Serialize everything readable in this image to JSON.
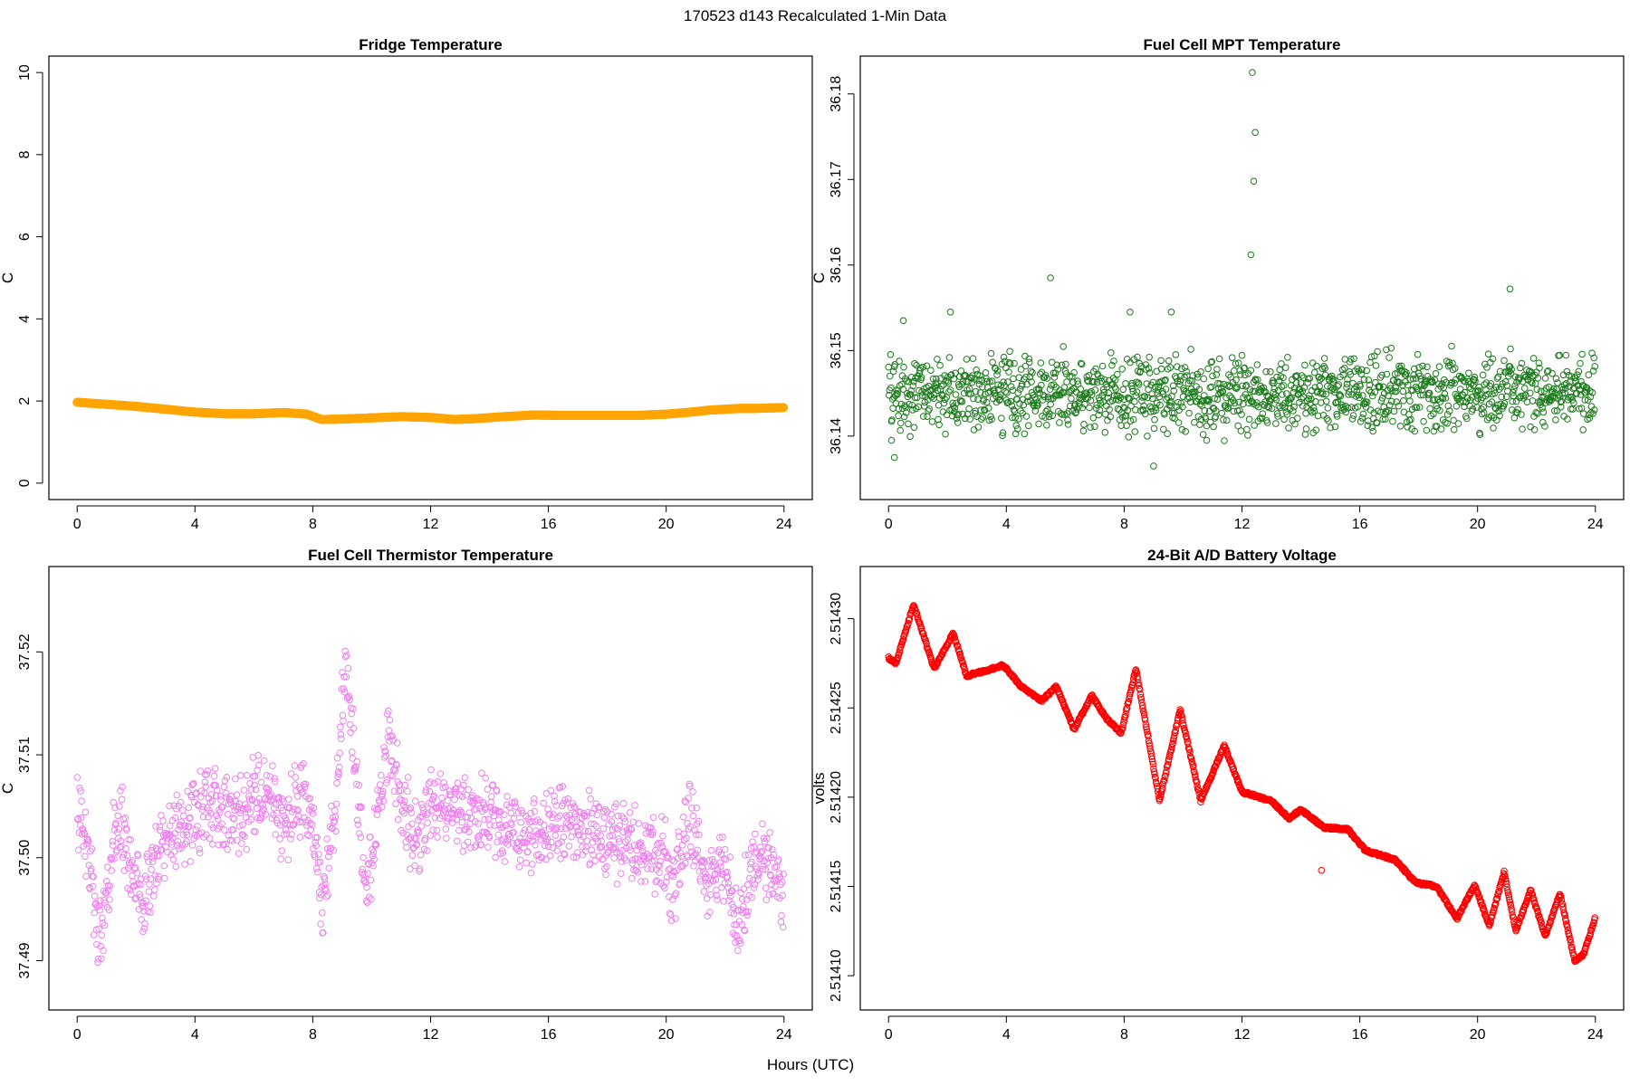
{
  "figure": {
    "title": "170523   d143   Recalculated 1-Min Data",
    "xlabel": "Hours (UTC)"
  },
  "chart_data": [
    {
      "type": "scatter",
      "title": "Fridge Temperature",
      "xlabel": "",
      "ylabel": "C",
      "xlim": [
        0,
        24
      ],
      "ylim": [
        0,
        10
      ],
      "xticks": [
        "0",
        "4",
        "8",
        "12",
        "16",
        "20",
        "24"
      ],
      "yticks": [
        "0",
        "2",
        "4",
        "6",
        "8",
        "10"
      ],
      "color": "#FFA500",
      "filled": true,
      "series": [
        {
          "name": "Fridge Temperature",
          "x": [
            0,
            1,
            2,
            3,
            4,
            5,
            6,
            7,
            7.8,
            8.3,
            9,
            10,
            11,
            12,
            12.8,
            13.5,
            14.5,
            15.5,
            16.5,
            18,
            19,
            20,
            20.7,
            21.5,
            22.5,
            23,
            24
          ],
          "y": [
            1.97,
            1.92,
            1.87,
            1.8,
            1.73,
            1.69,
            1.69,
            1.72,
            1.68,
            1.55,
            1.56,
            1.59,
            1.62,
            1.6,
            1.55,
            1.57,
            1.62,
            1.66,
            1.65,
            1.65,
            1.65,
            1.68,
            1.72,
            1.78,
            1.82,
            1.82,
            1.84
          ]
        }
      ]
    },
    {
      "type": "scatter",
      "title": "Fuel Cell MPT Temperature",
      "xlabel": "",
      "ylabel": "C",
      "xlim": [
        0,
        24
      ],
      "ylim": [
        36.1345,
        36.1825
      ],
      "xticks": [
        "0",
        "4",
        "8",
        "12",
        "16",
        "20",
        "24"
      ],
      "yticks": [
        "36.14",
        "36.15",
        "36.16",
        "36.17",
        "36.18"
      ],
      "color": "#1A7A1A",
      "filled": false,
      "series": [
        {
          "name": "Fuel Cell MPT Temperature",
          "base": 36.145,
          "noise": 0.0035,
          "x": [
            0.2,
            0.1,
            0.5,
            5.5,
            9,
            9.6,
            10.8,
            12.3,
            12.35,
            12.4,
            12.45,
            21.1,
            2.1,
            8.2
          ],
          "y": [
            36.1375,
            36.1395,
            36.1535,
            36.1585,
            36.1365,
            36.1545,
            36.1395,
            36.1612,
            36.1825,
            36.1698,
            36.1755,
            36.1572,
            36.1545,
            36.1545
          ]
        }
      ]
    },
    {
      "type": "scatter",
      "title": "Fuel Cell Thermistor Temperature",
      "xlabel": "",
      "ylabel": "C",
      "xlim": [
        0,
        24
      ],
      "ylim": [
        37.4868,
        37.5267
      ],
      "xticks": [
        "0",
        "4",
        "8",
        "12",
        "16",
        "20",
        "24"
      ],
      "yticks": [
        "37.49",
        "37.50",
        "37.51",
        "37.52"
      ],
      "color": "#EE82EE",
      "filled": false,
      "series": [
        {
          "name": "Fuel Cell Thermistor Temperature",
          "x": [
            0,
            0.5,
            0.8,
            1.2,
            1.5,
            1.8,
            2.2,
            2.8,
            3.5,
            4.5,
            5.5,
            6,
            6.5,
            7,
            7.5,
            8,
            8.3,
            8.8,
            9.1,
            9.5,
            9.8,
            10.3,
            10.6,
            11,
            11.5,
            12,
            13,
            14,
            15,
            16,
            17,
            18,
            19,
            20,
            20.3,
            20.8,
            21.3,
            22,
            22.5,
            23,
            23.5,
            23.9
          ],
          "y": [
            37.505,
            37.498,
            37.492,
            37.501,
            37.504,
            37.499,
            37.495,
            37.501,
            37.503,
            37.505,
            37.504,
            37.506,
            37.507,
            37.503,
            37.506,
            37.504,
            37.495,
            37.506,
            37.52,
            37.507,
            37.497,
            37.506,
            37.512,
            37.505,
            37.502,
            37.505,
            37.505,
            37.504,
            37.502,
            37.503,
            37.503,
            37.502,
            37.501,
            37.5,
            37.497,
            37.505,
            37.497,
            37.499,
            37.494,
            37.499,
            37.5,
            37.496
          ]
        }
      ]
    },
    {
      "type": "scatter",
      "title": "24-Bit A/D Battery Voltage",
      "xlabel": "",
      "ylabel": "volts",
      "xlim": [
        0,
        24
      ],
      "ylim": [
        2.51409,
        2.51432
      ],
      "xticks": [
        "0",
        "4",
        "8",
        "12",
        "16",
        "20",
        "24"
      ],
      "yticks": [
        "2.51410",
        "2.51415",
        "2.51420",
        "2.51425",
        "2.51430"
      ],
      "color": "#FF0000",
      "filled": false,
      "series": [
        {
          "name": "24-Bit A/D Battery Voltage",
          "x": [
            0,
            0.25,
            0.85,
            1.55,
            2.2,
            2.65,
            3.1,
            3.9,
            4.5,
            5.2,
            5.7,
            6.3,
            6.9,
            7.4,
            7.9,
            8.4,
            9.2,
            9.9,
            10.6,
            11.4,
            12,
            13,
            13.6,
            14,
            14.8,
            15.6,
            16.2,
            17.2,
            17.9,
            18.6,
            19.3,
            19.9,
            20.4,
            20.9,
            21.3,
            21.8,
            22.3,
            22.8,
            23.3,
            23.6,
            24
          ],
          "y": [
            2.514278,
            2.514275,
            2.514308,
            2.514272,
            2.514292,
            2.514268,
            2.51427,
            2.514274,
            2.514262,
            2.514254,
            2.514262,
            2.514238,
            2.514257,
            2.514244,
            2.514236,
            2.514272,
            2.514198,
            2.514249,
            2.514198,
            2.514229,
            2.514203,
            2.514198,
            2.514188,
            2.514193,
            2.514183,
            2.514182,
            2.51417,
            2.514165,
            2.514152,
            2.51415,
            2.514132,
            2.514151,
            2.514128,
            2.514158,
            2.514125,
            2.514148,
            2.514122,
            2.514146,
            2.514108,
            2.514112,
            2.514133
          ]
        }
      ]
    }
  ]
}
